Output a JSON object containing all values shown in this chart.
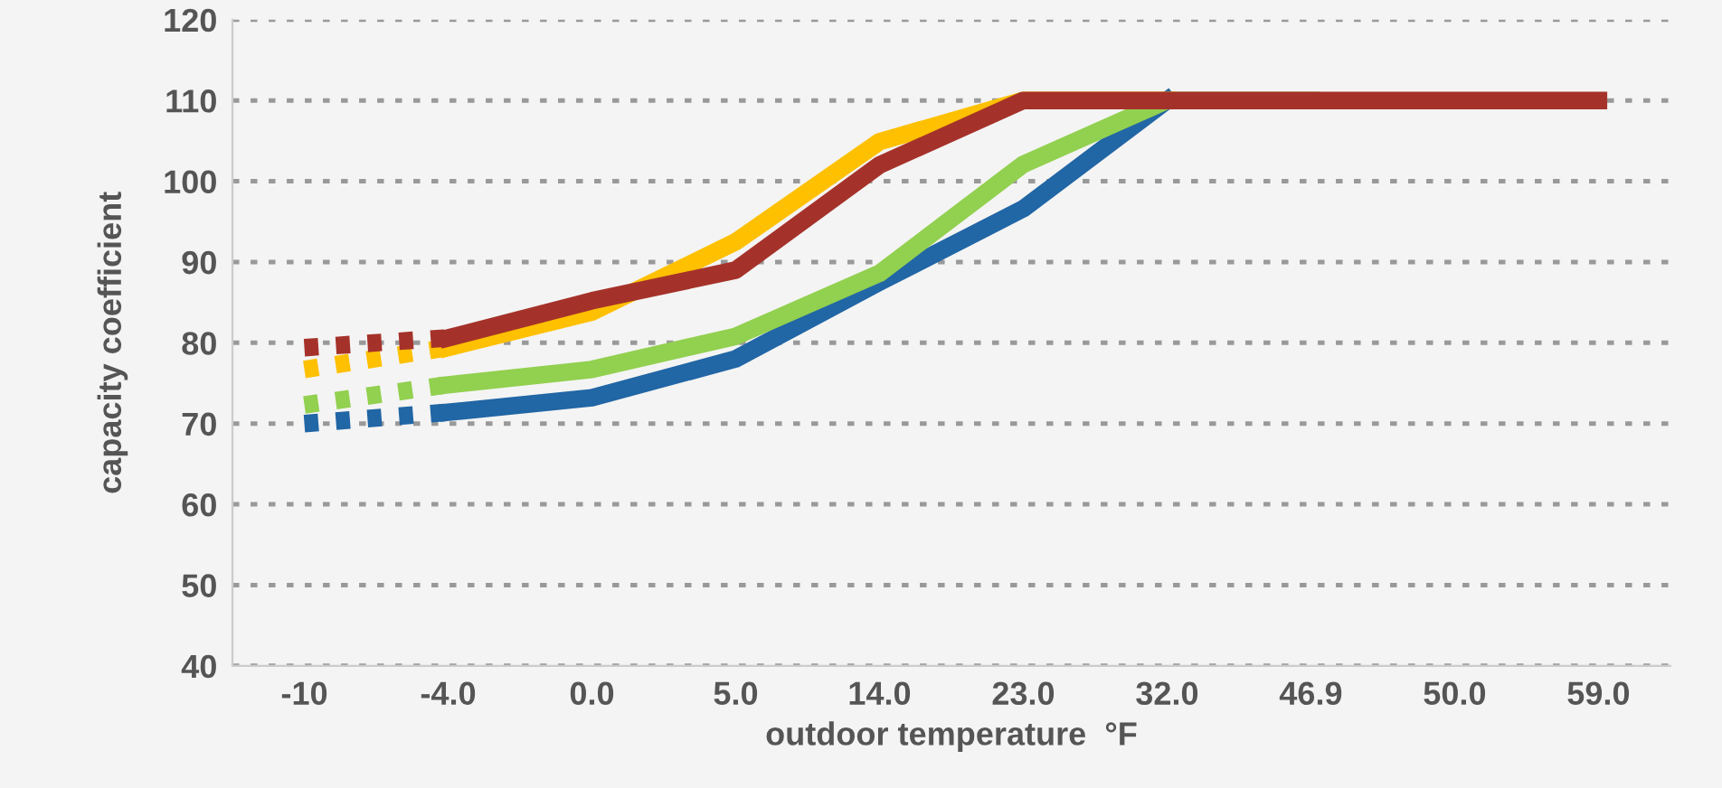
{
  "chart_data": {
    "type": "line",
    "xlabel": "outdoor temperature  °F",
    "ylabel": "capacity coefficient",
    "categories": [
      "-10",
      "-4.0",
      "0.0",
      "5.0",
      "14.0",
      "23.0",
      "32.0",
      "46.9",
      "50.0",
      "59.0"
    ],
    "ylim": [
      40,
      120
    ],
    "yticks": [
      40,
      50,
      60,
      70,
      80,
      90,
      100,
      110,
      120
    ],
    "grid": "y",
    "marker": "none",
    "series": [
      {
        "color": "#2166a5",
        "line_style": "dotted",
        "values": [
          70,
          71.4,
          null,
          null,
          null,
          null,
          null,
          null,
          null,
          null
        ]
      },
      {
        "color": "#2166a5",
        "line_style": "solid",
        "values": [
          null,
          71.4,
          73.2,
          78,
          87.5,
          96.6,
          110,
          null,
          null,
          null
        ]
      },
      {
        "color": "#92d050",
        "line_style": "dotted",
        "values": [
          72.3,
          74.8,
          null,
          null,
          null,
          null,
          null,
          null,
          null,
          null
        ]
      },
      {
        "color": "#92d050",
        "line_style": "solid",
        "values": [
          null,
          74.8,
          76.7,
          80.8,
          88.6,
          102.1,
          110,
          110,
          null,
          null
        ]
      },
      {
        "color": "#ffc000",
        "line_style": "dotted",
        "values": [
          76.7,
          79.4,
          null,
          null,
          null,
          null,
          null,
          null,
          null,
          null
        ]
      },
      {
        "color": "#ffc000",
        "line_style": "solid",
        "values": [
          null,
          79.4,
          83.8,
          92.5,
          104.9,
          110,
          110,
          null,
          null,
          null
        ]
      },
      {
        "color": "#a5322a",
        "line_style": "dotted",
        "values": [
          79.4,
          80.6,
          null,
          null,
          null,
          null,
          null,
          null,
          null,
          null
        ]
      },
      {
        "color": "#a5322a",
        "line_style": "solid",
        "values": [
          null,
          80.6,
          85.2,
          89,
          102,
          110,
          110,
          110,
          110,
          110
        ]
      }
    ]
  }
}
